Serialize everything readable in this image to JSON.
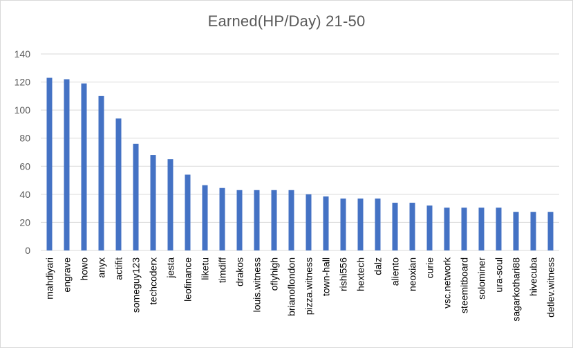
{
  "chart_data": {
    "type": "bar",
    "title": "Earned(HP/Day)  21-50",
    "xlabel": "",
    "ylabel": "",
    "ylim": [
      0,
      140
    ],
    "yticks": [
      0,
      20,
      40,
      60,
      80,
      100,
      120,
      140
    ],
    "grid": true,
    "legend": "none",
    "bar_color": "#4472c4",
    "categories": [
      "mahdiyari",
      "engrave",
      "howo",
      "anyx",
      "actifit",
      "someguy123",
      "techcoderx",
      "jesta",
      "leofinance",
      "liketu",
      "timdiff",
      "drakos",
      "louis.witness",
      "oflyhigh",
      "brianoflondon",
      "pizza.witness",
      "town-hall",
      "rishi556",
      "hextech",
      "dalz",
      "aliento",
      "neoxian",
      "curie",
      "vsc.network",
      "steemitboard",
      "solominer",
      "ura-soul",
      "sagarkothari88",
      "hivecuba",
      "detlev.witness"
    ],
    "values": [
      123,
      122,
      119,
      110,
      94,
      76,
      68,
      65,
      54,
      46.5,
      44.5,
      43,
      43,
      43,
      43,
      40,
      38.5,
      37,
      37,
      37,
      34,
      34,
      32,
      30.5,
      30.5,
      30.5,
      30.5,
      27.5,
      27.5,
      27.5
    ]
  }
}
